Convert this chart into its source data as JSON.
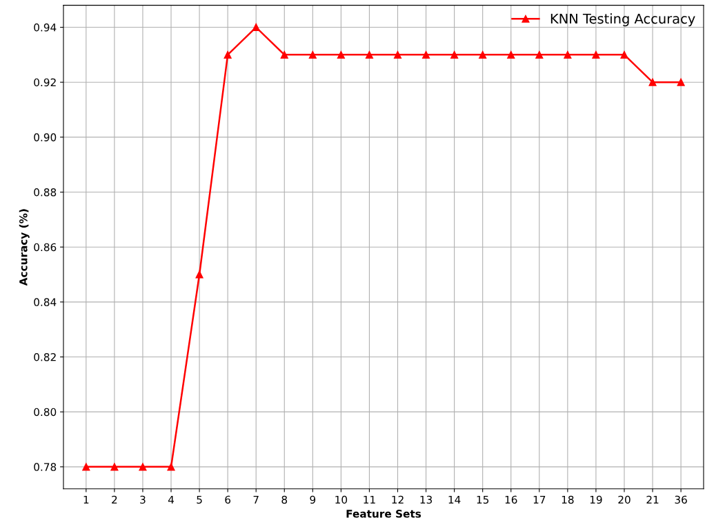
{
  "chart_data": {
    "type": "line",
    "xlabel": "Feature Sets",
    "ylabel": "Accuracy (%)",
    "categories": [
      "1",
      "2",
      "3",
      "4",
      "5",
      "6",
      "7",
      "8",
      "9",
      "10",
      "11",
      "12",
      "13",
      "14",
      "15",
      "16",
      "17",
      "18",
      "19",
      "20",
      "21",
      "36"
    ],
    "series": [
      {
        "name": "KNN Testing Accuracy",
        "color": "#ff0000",
        "values": [
          0.78,
          0.78,
          0.78,
          0.78,
          0.85,
          0.93,
          0.94,
          0.93,
          0.93,
          0.93,
          0.93,
          0.93,
          0.93,
          0.93,
          0.93,
          0.93,
          0.93,
          0.93,
          0.93,
          0.93,
          0.92,
          0.92
        ]
      }
    ],
    "ylim": [
      0.772,
      0.948
    ],
    "yticks": [
      {
        "value": 0.78,
        "label": "0.78"
      },
      {
        "value": 0.8,
        "label": "0.80"
      },
      {
        "value": 0.82,
        "label": "0.82"
      },
      {
        "value": 0.84,
        "label": "0.84"
      },
      {
        "value": 0.86,
        "label": "0.86"
      },
      {
        "value": 0.88,
        "label": "0.88"
      },
      {
        "value": 0.9,
        "label": "0.90"
      },
      {
        "value": 0.92,
        "label": "0.92"
      },
      {
        "value": 0.94,
        "label": "0.94"
      }
    ],
    "grid": true,
    "legend": "top right",
    "marker": "triangle",
    "line_style": "solid"
  }
}
